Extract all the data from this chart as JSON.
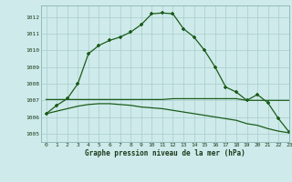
{
  "title": "Graphe pression niveau de la mer (hPa)",
  "background_color": "#ceeaea",
  "grid_color": "#aacccc",
  "line_color": "#1a5c1a",
  "xlim": [
    -0.5,
    23
  ],
  "ylim": [
    1004.5,
    1012.7
  ],
  "yticks": [
    1005,
    1006,
    1007,
    1008,
    1009,
    1010,
    1011,
    1012
  ],
  "xticks": [
    0,
    1,
    2,
    3,
    4,
    5,
    6,
    7,
    8,
    9,
    10,
    11,
    12,
    13,
    14,
    15,
    16,
    17,
    18,
    19,
    20,
    21,
    22,
    23
  ],
  "series_main": {
    "x": [
      0,
      1,
      2,
      3,
      4,
      5,
      6,
      7,
      8,
      9,
      10,
      11,
      12,
      13,
      14,
      15,
      16,
      17,
      18,
      19,
      20,
      21,
      22,
      23
    ],
    "y": [
      1006.2,
      1006.7,
      1007.1,
      1008.0,
      1009.8,
      1010.3,
      1010.6,
      1010.8,
      1011.1,
      1011.55,
      1012.2,
      1012.25,
      1012.2,
      1011.3,
      1010.8,
      1010.0,
      1009.0,
      1007.8,
      1007.5,
      1007.0,
      1007.35,
      1006.85,
      1005.9,
      1005.1
    ]
  },
  "series_flat": {
    "x": [
      0,
      1,
      2,
      3,
      4,
      5,
      6,
      7,
      8,
      9,
      10,
      11,
      12,
      13,
      14,
      15,
      16,
      17,
      18,
      19,
      20,
      21,
      22,
      23
    ],
    "y": [
      1007.05,
      1007.05,
      1007.05,
      1007.05,
      1007.05,
      1007.05,
      1007.05,
      1007.05,
      1007.05,
      1007.05,
      1007.05,
      1007.05,
      1007.1,
      1007.1,
      1007.1,
      1007.1,
      1007.1,
      1007.1,
      1007.1,
      1007.0,
      1007.0,
      1007.0,
      1007.0,
      1007.0
    ]
  },
  "series_decline": {
    "x": [
      0,
      1,
      2,
      3,
      4,
      5,
      6,
      7,
      8,
      9,
      10,
      11,
      12,
      13,
      14,
      15,
      16,
      17,
      18,
      19,
      20,
      21,
      22,
      23
    ],
    "y": [
      1006.2,
      1006.35,
      1006.5,
      1006.65,
      1006.75,
      1006.8,
      1006.8,
      1006.75,
      1006.7,
      1006.6,
      1006.55,
      1006.5,
      1006.4,
      1006.3,
      1006.2,
      1006.1,
      1006.0,
      1005.9,
      1005.8,
      1005.6,
      1005.5,
      1005.3,
      1005.15,
      1005.05
    ]
  }
}
